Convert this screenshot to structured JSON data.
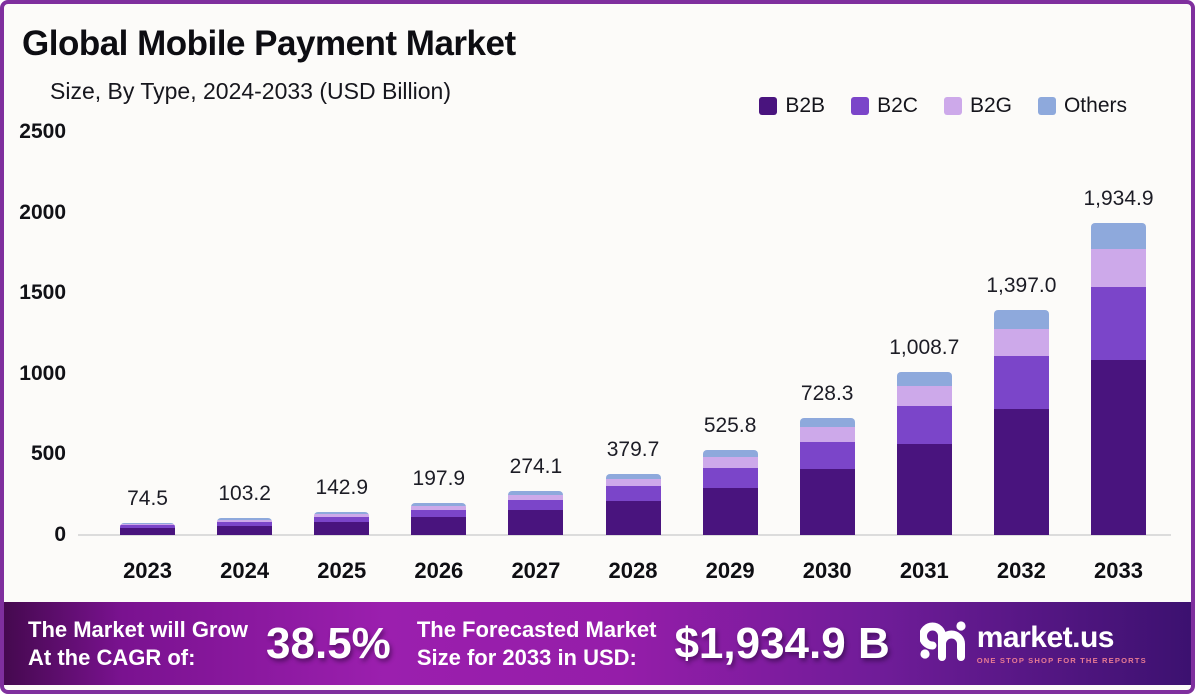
{
  "header": {
    "title": "Global Mobile Payment Market",
    "subtitle": "Size, By Type, 2024-2033 (USD Billion)"
  },
  "chart_data": {
    "type": "bar",
    "stacked": true,
    "title": "Global Mobile Payment Market",
    "subtitle": "Size, By Type, 2024-2033 (USD Billion)",
    "unit": "USD Billion",
    "categories": [
      "2023",
      "2024",
      "2025",
      "2026",
      "2027",
      "2028",
      "2029",
      "2030",
      "2031",
      "2032",
      "2033"
    ],
    "totals": [
      74.5,
      103.2,
      142.9,
      197.9,
      274.1,
      379.7,
      525.8,
      728.3,
      1008.7,
      1397.0,
      1934.9
    ],
    "total_labels": [
      "74.5",
      "103.2",
      "142.9",
      "197.9",
      "274.1",
      "379.7",
      "525.8",
      "728.3",
      "1,008.7",
      "1,397.0",
      "1,934.9"
    ],
    "series": [
      {
        "name": "B2B",
        "color": "#49147e",
        "values": [
          41.7,
          57.8,
          80.0,
          110.9,
          153.5,
          212.7,
          294.5,
          407.7,
          564.9,
          782.3,
          1083.5
        ]
      },
      {
        "name": "B2C",
        "color": "#7b45c9",
        "values": [
          17.5,
          24.3,
          33.6,
          46.5,
          64.4,
          89.2,
          123.6,
          171.2,
          237.0,
          328.3,
          454.7
        ]
      },
      {
        "name": "B2G",
        "color": "#cda9ea",
        "values": [
          9.1,
          12.6,
          17.4,
          24.1,
          33.4,
          46.3,
          64.1,
          88.9,
          123.1,
          170.4,
          236.1
        ]
      },
      {
        "name": "Others",
        "color": "#8ea9dc",
        "values": [
          6.2,
          8.5,
          11.9,
          16.4,
          22.8,
          31.5,
          43.6,
          60.5,
          83.7,
          116.0,
          160.6
        ]
      }
    ],
    "ylim": [
      0,
      2500
    ],
    "yticks": [
      0,
      500,
      1000,
      1500,
      2000,
      2500
    ],
    "ytick_labels": [
      "0",
      "500",
      "1000",
      "1500",
      "2000",
      "2500"
    ],
    "grid": false,
    "legend_position": "top-right"
  },
  "banner": {
    "cagr_line1": "The Market will Grow",
    "cagr_line2": "At the CAGR of:",
    "cagr_value": "38.5%",
    "forecast_line1": "The Forecasted Market",
    "forecast_line2": "Size for 2033 in USD:",
    "forecast_value": "$1,934.9 B",
    "logo_text": "market.us",
    "logo_tagline": "ONE STOP SHOP FOR THE REPORTS"
  },
  "colors": {
    "frame_border": "#7f2f9e",
    "background": "#fcfbf9",
    "axis_line": "#dcdcdc",
    "banner_gradient_left": "#45094f",
    "banner_gradient_mid": "#9b1fae",
    "banner_gradient_right": "#3c1170",
    "logo_tagline_pink": "#e87a93"
  }
}
